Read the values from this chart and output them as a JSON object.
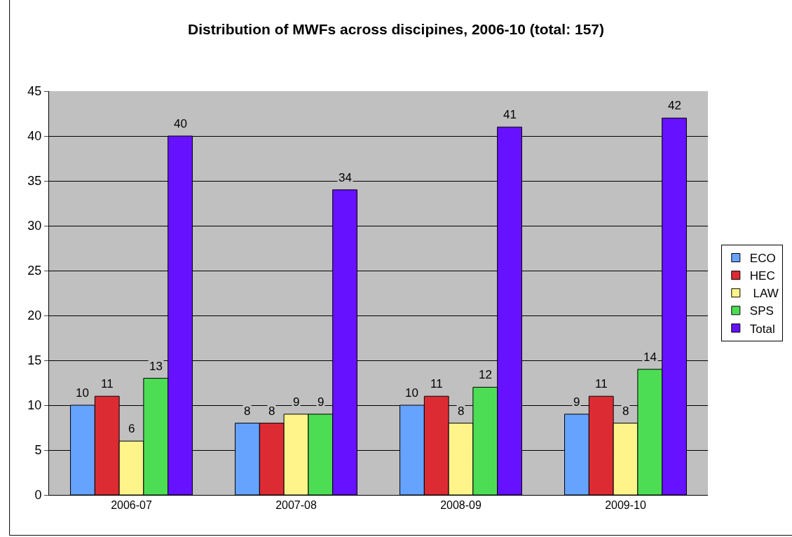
{
  "chart_data": {
    "type": "bar",
    "title": "Distribution of MWFs across discipines, 2006-10 (total: 157)",
    "categories": [
      "2006-07",
      "2007-08",
      "2008-09",
      "2009-10"
    ],
    "series": [
      {
        "name": "ECO",
        "color": "#66a3ff",
        "values": [
          10,
          8,
          10,
          9
        ]
      },
      {
        "name": "HEC",
        "color": "#dd2b33",
        "values": [
          11,
          8,
          11,
          11
        ]
      },
      {
        "name": " LAW",
        "color": "#fff48a",
        "values": [
          6,
          9,
          8,
          8
        ]
      },
      {
        "name": "SPS",
        "color": "#4ddd55",
        "values": [
          13,
          9,
          12,
          14
        ]
      },
      {
        "name": "Total",
        "color": "#6611ff",
        "values": [
          40,
          34,
          41,
          42
        ]
      }
    ],
    "ylim": [
      0,
      45
    ],
    "yticks": [
      0,
      5,
      10,
      15,
      20,
      25,
      30,
      35,
      40,
      45
    ],
    "grid": "y",
    "legend": "right",
    "data_labels": true
  }
}
